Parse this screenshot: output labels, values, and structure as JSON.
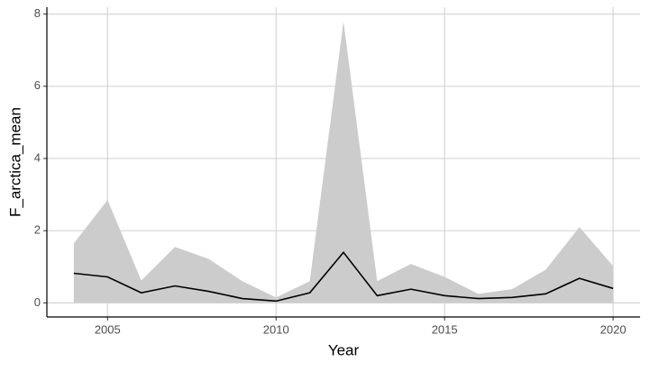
{
  "chart_data": {
    "type": "line",
    "xlabel": "Year",
    "ylabel": "F_arctica_mean",
    "x": [
      2004,
      2005,
      2006,
      2007,
      2008,
      2009,
      2010,
      2011,
      2012,
      2013,
      2014,
      2015,
      2016,
      2017,
      2018,
      2019,
      2020
    ],
    "series": [
      {
        "color": "#000000",
        "values": [
          0.82,
          0.72,
          0.28,
          0.47,
          0.32,
          0.12,
          0.05,
          0.28,
          1.4,
          0.2,
          0.38,
          0.2,
          0.12,
          0.15,
          0.25,
          0.68,
          0.4
        ]
      }
    ],
    "ribbon": {
      "color": "#cccccc",
      "upper": [
        1.65,
        2.85,
        0.62,
        1.55,
        1.22,
        0.6,
        0.15,
        0.6,
        7.8,
        0.6,
        1.08,
        0.72,
        0.25,
        0.38,
        0.92,
        2.1,
        1.02
      ],
      "lower": [
        0,
        0,
        0,
        0,
        0,
        0,
        0,
        0,
        0,
        0,
        0,
        0,
        0,
        0,
        0,
        0,
        0
      ]
    },
    "xlim": [
      2003.2,
      2020.8
    ],
    "xticks": [
      2005,
      2010,
      2015,
      2020
    ],
    "ylim": [
      -0.39,
      8.19
    ],
    "yticks": [
      0,
      2,
      4,
      6,
      8
    ],
    "grid": true
  }
}
